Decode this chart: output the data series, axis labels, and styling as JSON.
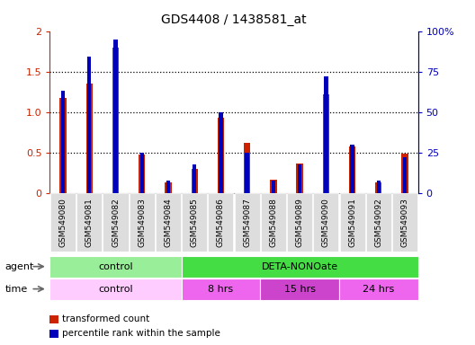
{
  "title": "GDS4408 / 1438581_at",
  "samples": [
    "GSM549080",
    "GSM549081",
    "GSM549082",
    "GSM549083",
    "GSM549084",
    "GSM549085",
    "GSM549086",
    "GSM549087",
    "GSM549088",
    "GSM549089",
    "GSM549090",
    "GSM549091",
    "GSM549092",
    "GSM549093"
  ],
  "red_values": [
    1.17,
    1.35,
    1.8,
    0.48,
    0.13,
    0.3,
    0.93,
    0.62,
    0.17,
    0.37,
    1.22,
    0.58,
    0.13,
    0.49
  ],
  "blue_percentile": [
    63,
    84,
    95,
    25,
    8,
    18,
    50,
    25,
    8,
    18,
    72,
    30,
    8,
    22
  ],
  "ylim": [
    0,
    2.0
  ],
  "yticks_left": [
    0,
    0.5,
    1.0,
    1.5,
    2.0
  ],
  "ytick_labels_left": [
    "0",
    "0.5",
    "1.0",
    "1.5",
    "2"
  ],
  "y2lim": [
    0,
    100
  ],
  "y2ticks": [
    0,
    25,
    50,
    75,
    100
  ],
  "y2tick_labels": [
    "0",
    "25",
    "50",
    "75",
    "100%"
  ],
  "agent_groups": [
    {
      "label": "control",
      "start": 0,
      "end": 5,
      "color": "#99EE99"
    },
    {
      "label": "DETA-NONOate",
      "start": 5,
      "end": 14,
      "color": "#44DD44"
    }
  ],
  "time_groups": [
    {
      "label": "control",
      "start": 0,
      "end": 5,
      "color": "#FFCCFF"
    },
    {
      "label": "8 hrs",
      "start": 5,
      "end": 8,
      "color": "#EE66EE"
    },
    {
      "label": "15 hrs",
      "start": 8,
      "end": 11,
      "color": "#CC44CC"
    },
    {
      "label": "24 hrs",
      "start": 11,
      "end": 14,
      "color": "#EE66EE"
    }
  ],
  "red_color": "#CC2200",
  "blue_color": "#0000BB",
  "bar_edge_color": "#AAAAAA",
  "grid_line_color": "#888888",
  "legend_red": "transformed count",
  "legend_blue": "percentile rank within the sample",
  "background_color": "#FFFFFF",
  "plot_bg_color": "#FFFFFF"
}
